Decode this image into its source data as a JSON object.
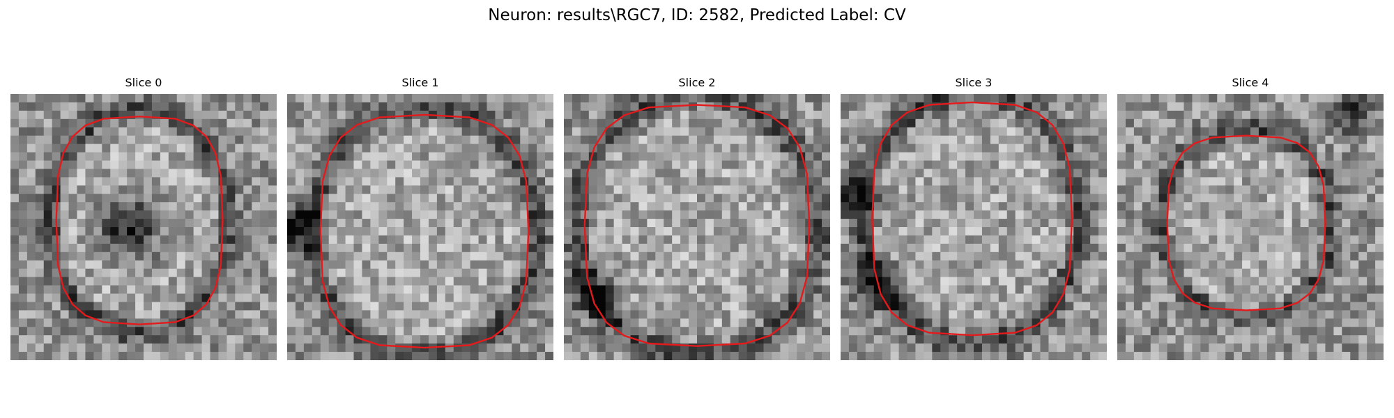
{
  "figure": {
    "title": "Neuron: results\\RGC7, ID: 2582, Predicted Label: CV"
  },
  "slices": [
    {
      "label": "Slice 0",
      "contour_color": "#e41a1c",
      "colormap": "grayscale"
    },
    {
      "label": "Slice 1",
      "contour_color": "#e41a1c",
      "colormap": "grayscale"
    },
    {
      "label": "Slice 2",
      "contour_color": "#e41a1c",
      "colormap": "grayscale"
    },
    {
      "label": "Slice 3",
      "contour_color": "#e41a1c",
      "colormap": "grayscale"
    },
    {
      "label": "Slice 4",
      "contour_color": "#e41a1c",
      "colormap": "grayscale"
    }
  ]
}
